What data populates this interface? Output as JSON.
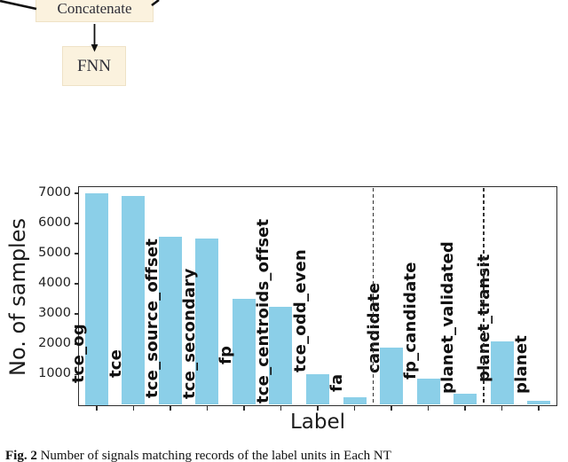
{
  "figure": {
    "flowchart": {
      "concatenate_label": "Concatenate",
      "fnn_label": "FNN",
      "box_fill": "#FBF2DE",
      "box_border": "#EFE2C6"
    },
    "caption": {
      "tag": "Fig. 2",
      "text": "Number of signals matching records of the label units in Each NT"
    }
  },
  "chart_data": {
    "type": "bar",
    "title": "",
    "xlabel": "Label",
    "ylabel": "No. of samples",
    "categories": [
      "tce_og",
      "tce",
      "tce_source_offset",
      "tce_secondary",
      "fp",
      "tce_centroids_offset",
      "tce_odd_even",
      "fa",
      "candidate",
      "fp_candidate",
      "planet_validated",
      "planet_transit",
      "planet"
    ],
    "values": [
      7000,
      6900,
      5550,
      5500,
      3500,
      3250,
      1000,
      250,
      1900,
      850,
      350,
      2100,
      130
    ],
    "yticks": [
      1000,
      2000,
      3000,
      4000,
      5000,
      6000,
      7000
    ],
    "ylim": [
      0,
      7300
    ],
    "bar_color": "#8BCFE8",
    "axis_color": "#2E2E2E",
    "label_color": "#111111",
    "grid": false,
    "legend": null,
    "separator_after": [
      "fa",
      "planet_validated"
    ]
  }
}
